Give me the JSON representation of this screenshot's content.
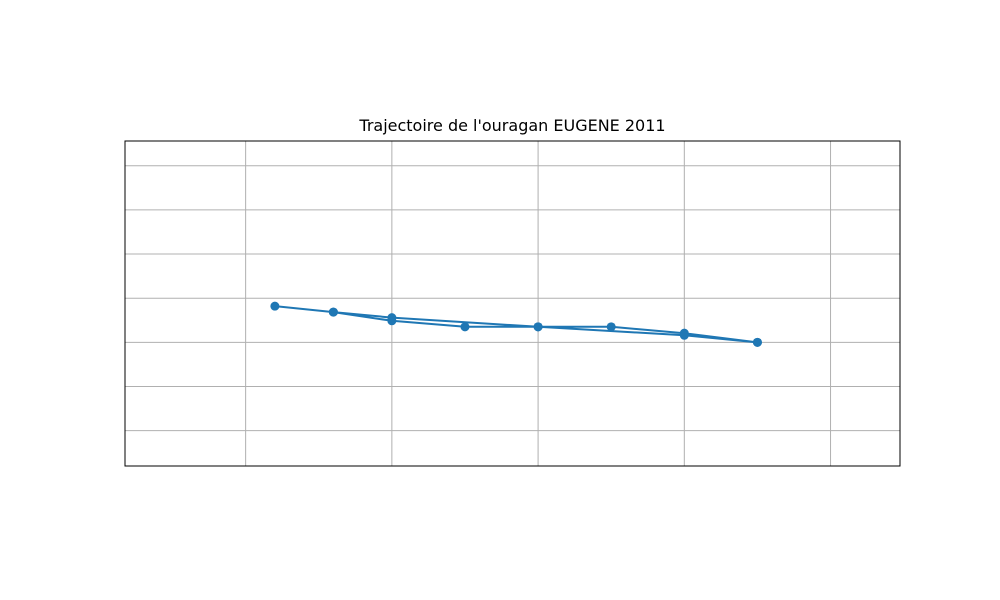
{
  "chart_data": {
    "type": "line",
    "title": "Trajectoire de l'ouragan EUGENE 2011",
    "xlabel": "",
    "ylabel": "",
    "grid": true,
    "xlim": [
      -142.05,
      -131.45
    ],
    "ylim": [
      -0.35,
      0.57
    ],
    "x_gridlines": [
      -140.4,
      -138.4,
      -136.4,
      -134.4,
      -132.4
    ],
    "y_gridlines": [
      -0.25,
      -0.125,
      0.0,
      0.125,
      0.25,
      0.375,
      0.5
    ],
    "series": [
      {
        "color": "#1f77b4",
        "x": [
          -133.4,
          -134.4,
          -135.4,
          -136.4,
          -137.4,
          -138.4,
          -139.2,
          -140.0,
          -139.2,
          -138.4,
          -136.4,
          -134.4,
          -133.4
        ],
        "y": [
          0.0,
          0.026,
          0.044,
          0.044,
          0.044,
          0.061,
          0.0857,
          0.1025,
          0.0857,
          0.07,
          0.044,
          0.02,
          0.0
        ]
      }
    ]
  }
}
